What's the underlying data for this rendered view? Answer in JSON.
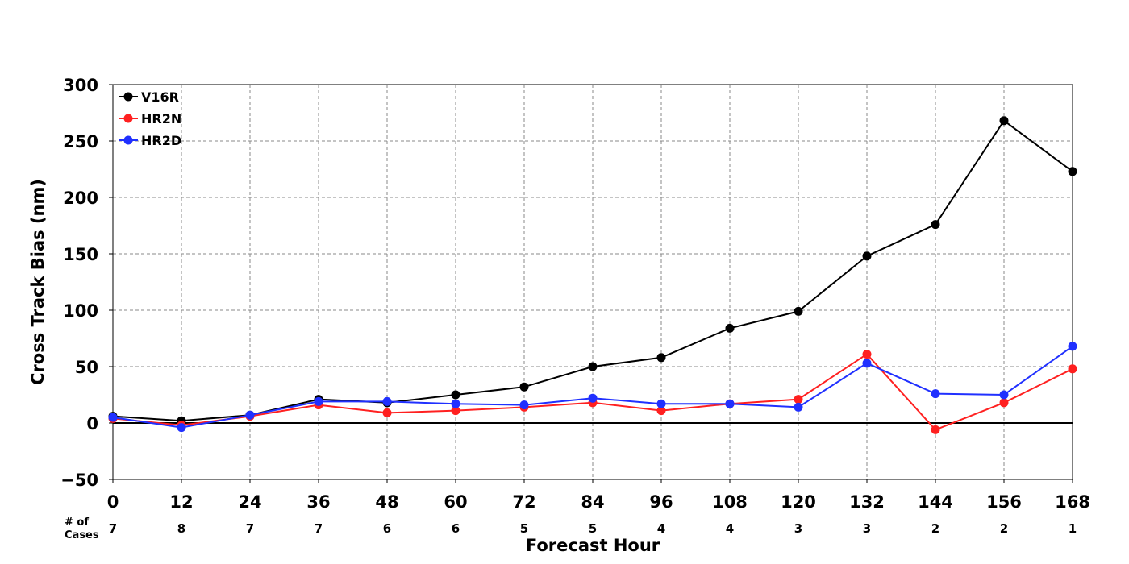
{
  "chart_data": {
    "type": "line",
    "xlabel": "Forecast Hour",
    "ylabel": "Cross Track Bias (nm)",
    "x": [
      0,
      12,
      24,
      36,
      48,
      60,
      72,
      84,
      96,
      108,
      120,
      132,
      144,
      156,
      168
    ],
    "x_ticks": [
      "0",
      "12",
      "24",
      "36",
      "48",
      "60",
      "72",
      "84",
      "96",
      "108",
      "120",
      "132",
      "144",
      "156",
      "168"
    ],
    "xlim": [
      0,
      168
    ],
    "ylim": [
      -50,
      300
    ],
    "y_ticks": [
      -50,
      0,
      50,
      100,
      150,
      200,
      250,
      300
    ],
    "y_tick_labels": [
      "−50",
      "0",
      "50",
      "100",
      "150",
      "200",
      "250",
      "300"
    ],
    "grid": true,
    "zero_line": true,
    "legend_position": "top-left",
    "series": [
      {
        "name": "V16R",
        "color": "#000000",
        "values": [
          6,
          2,
          7,
          21,
          18,
          25,
          32,
          50,
          58,
          84,
          99,
          148,
          176,
          268,
          223
        ]
      },
      {
        "name": "HR2N",
        "color": "#ff2020",
        "values": [
          4,
          -2,
          6,
          16,
          9,
          11,
          14,
          18,
          11,
          17,
          21,
          61,
          -6,
          18,
          48
        ]
      },
      {
        "name": "HR2D",
        "color": "#2030ff",
        "values": [
          5,
          -4,
          7,
          19,
          19,
          17,
          16,
          22,
          17,
          17,
          14,
          53,
          26,
          25,
          68
        ]
      }
    ],
    "cases_label": [
      "# of",
      "Cases"
    ],
    "cases": [
      "7",
      "8",
      "7",
      "7",
      "6",
      "6",
      "5",
      "5",
      "4",
      "4",
      "3",
      "3",
      "2",
      "2",
      "1"
    ]
  }
}
